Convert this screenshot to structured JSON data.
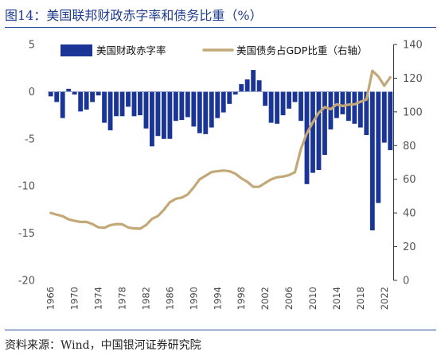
{
  "header": {
    "title": "图14：美国联邦财政赤字率和债务比重（%）"
  },
  "footer": {
    "source": "资料来源：Wind，中国银河证券研究院"
  },
  "colors": {
    "bar": "#1a3596",
    "line": "#c3a878",
    "accent": "#1f3b8f"
  },
  "chart_data": {
    "type": "bar",
    "x": [
      1966,
      1967,
      1968,
      1969,
      1970,
      1971,
      1972,
      1973,
      1974,
      1975,
      1976,
      1977,
      1978,
      1979,
      1980,
      1981,
      1982,
      1983,
      1984,
      1985,
      1986,
      1987,
      1988,
      1989,
      1990,
      1991,
      1992,
      1993,
      1994,
      1995,
      1996,
      1997,
      1998,
      1999,
      2000,
      2001,
      2002,
      2003,
      2004,
      2005,
      2006,
      2007,
      2008,
      2009,
      2010,
      2011,
      2012,
      2013,
      2014,
      2015,
      2016,
      2017,
      2018,
      2019,
      2020,
      2021,
      2022,
      2023
    ],
    "xticks": [
      "1966",
      "1970",
      "1974",
      "1978",
      "1982",
      "1986",
      "1990",
      "1994",
      "1998",
      "2002",
      "2006",
      "2010",
      "2014",
      "2018",
      "2022"
    ],
    "series": [
      {
        "name": "美国财政赤字率",
        "type": "bar",
        "axis": "left",
        "values": [
          -0.5,
          -1.1,
          -2.8,
          0.3,
          -0.3,
          -2.1,
          -1.9,
          -1.1,
          -0.4,
          -3.3,
          -4.1,
          -2.6,
          -2.6,
          -1.6,
          -2.6,
          -2.5,
          -3.9,
          -5.8,
          -4.7,
          -5.0,
          -5.0,
          -3.1,
          -3.0,
          -2.7,
          -3.7,
          -4.4,
          -4.5,
          -3.8,
          -2.8,
          -2.2,
          -1.3,
          -0.3,
          0.8,
          1.3,
          2.3,
          1.2,
          -1.5,
          -3.3,
          -3.4,
          -2.5,
          -1.8,
          -1.1,
          -3.1,
          -9.8,
          -8.6,
          -8.3,
          -6.7,
          -4.0,
          -2.8,
          -2.4,
          -3.1,
          -3.4,
          -3.8,
          -4.6,
          -14.7,
          -11.8,
          -5.4,
          -6.2
        ]
      },
      {
        "name": "美国债务占GDP比重（右轴）",
        "type": "line",
        "axis": "right",
        "values": [
          40.0,
          39.0,
          38.1,
          36.2,
          35.3,
          34.7,
          34.7,
          33.4,
          31.5,
          31.2,
          32.8,
          33.4,
          33.3,
          31.4,
          30.8,
          30.7,
          32.8,
          36.5,
          38.2,
          41.9,
          46.4,
          48.4,
          49.1,
          51.0,
          55.2,
          60.0,
          62.1,
          64.3,
          64.8,
          65.2,
          64.8,
          63.3,
          60.6,
          58.5,
          55.5,
          55.6,
          57.8,
          59.9,
          61.2,
          61.6,
          62.5,
          64.2,
          78.0,
          87.3,
          93.8,
          99.5,
          102.8,
          101.6,
          104.5,
          103.5,
          104.3,
          104.5,
          106.0,
          107.3,
          124.4,
          121.0,
          115.5,
          120.5
        ]
      }
    ],
    "y_left": {
      "min": -20,
      "max": 5,
      "ticks": [
        "5",
        "0",
        "-5",
        "-10",
        "-15",
        "-20"
      ]
    },
    "y_right": {
      "min": 0,
      "max": 140,
      "ticks": [
        "140",
        "120",
        "100",
        "80",
        "60",
        "40",
        "20",
        "0"
      ]
    },
    "legend": {
      "position": "top",
      "items": [
        "美国财政赤字率",
        "美国债务占GDP比重（右轴）"
      ]
    },
    "grid": false,
    "zero_line": "dashed"
  }
}
